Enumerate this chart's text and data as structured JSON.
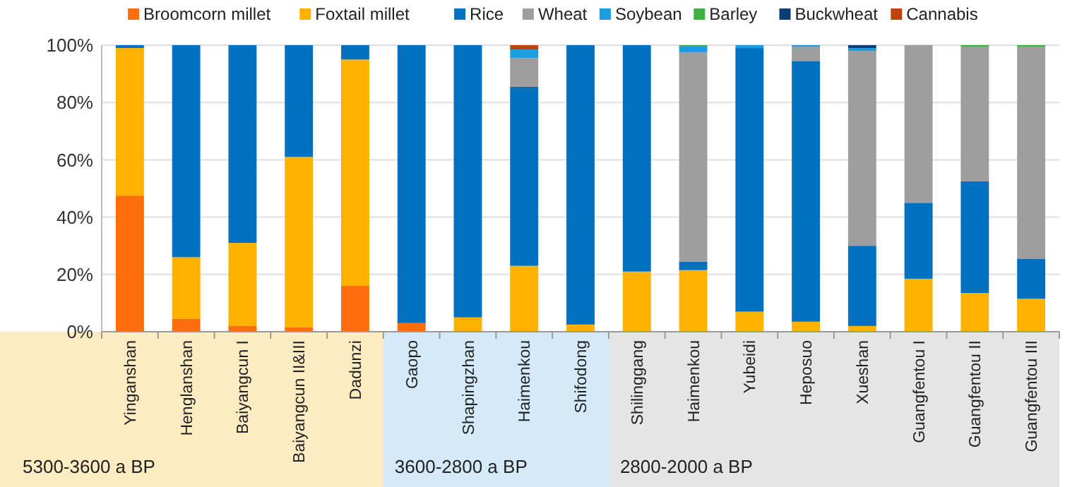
{
  "chart_data": {
    "type": "bar",
    "stacked": true,
    "grid": "y",
    "legend": "top",
    "categories": [
      "Yinganshan",
      "Henglanshan",
      "Baiyangcun I",
      "Baiyangcun II&III",
      "Dadunzi",
      "Gaopo",
      "Shapingzhan",
      "Haimenkou",
      "Shifodong",
      "Shilinggang",
      "Haimenkou",
      "Yubeidi",
      "Heposuo",
      "Xueshan",
      "Guangfentou I",
      "Guangfentou II",
      "Guangfentou III"
    ],
    "series": [
      {
        "name": "Broomcorn millet",
        "color": "#ff6d0d",
        "values": [
          47.5,
          4.5,
          2,
          1.5,
          16,
          3,
          0,
          0,
          0,
          0,
          0,
          0,
          0,
          0,
          0,
          0,
          0
        ]
      },
      {
        "name": "Foxtail millet",
        "color": "#ffb300",
        "values": [
          51.5,
          21.5,
          29,
          59.5,
          79,
          0,
          5,
          23,
          2.5,
          21,
          21.5,
          7,
          3.5,
          2,
          18.5,
          13.5,
          11.5
        ]
      },
      {
        "name": "Rice",
        "color": "#0070c0",
        "values": [
          1,
          74,
          69,
          39,
          5,
          97,
          95,
          62.5,
          97.5,
          79,
          3,
          92,
          91,
          28,
          26.5,
          39,
          14
        ]
      },
      {
        "name": "Wheat",
        "color": "#9e9e9e",
        "values": [
          0,
          0,
          0,
          0,
          0,
          0,
          0,
          10,
          0,
          0,
          73,
          0,
          5,
          68,
          55,
          47,
          74
        ]
      },
      {
        "name": "Soybean",
        "color": "#1a9ee0",
        "values": [
          0,
          0,
          0,
          0,
          0,
          0,
          0,
          3,
          0,
          0,
          2,
          1,
          0.5,
          1,
          0,
          0,
          0
        ]
      },
      {
        "name": "Barley",
        "color": "#3cb043",
        "values": [
          0,
          0,
          0,
          0,
          0,
          0,
          0,
          0,
          0,
          0,
          0.5,
          0,
          0,
          0,
          0,
          0.5,
          0.5
        ]
      },
      {
        "name": "Buckwheat",
        "color": "#0d3d75",
        "values": [
          0,
          0,
          0,
          0,
          0,
          0,
          0,
          0,
          0,
          0,
          0,
          0,
          0,
          1,
          0,
          0,
          0
        ]
      },
      {
        "name": "Cannabis",
        "color": "#c0430a",
        "values": [
          0,
          0,
          0,
          0,
          0,
          0,
          0,
          1.5,
          0,
          0,
          0,
          0,
          0,
          0,
          0,
          0,
          0
        ]
      }
    ],
    "ylim": [
      0,
      100
    ],
    "yticks": [
      {
        "value": 0,
        "label": "0%"
      },
      {
        "value": 20,
        "label": "20%"
      },
      {
        "value": 40,
        "label": "40%"
      },
      {
        "value": 60,
        "label": "60%"
      },
      {
        "value": 80,
        "label": "80%"
      },
      {
        "value": 100,
        "label": "100%"
      }
    ],
    "annotations": [
      "5300-3600 a BP",
      "3600-2800 a BP",
      "2800-2000 a BP"
    ]
  }
}
